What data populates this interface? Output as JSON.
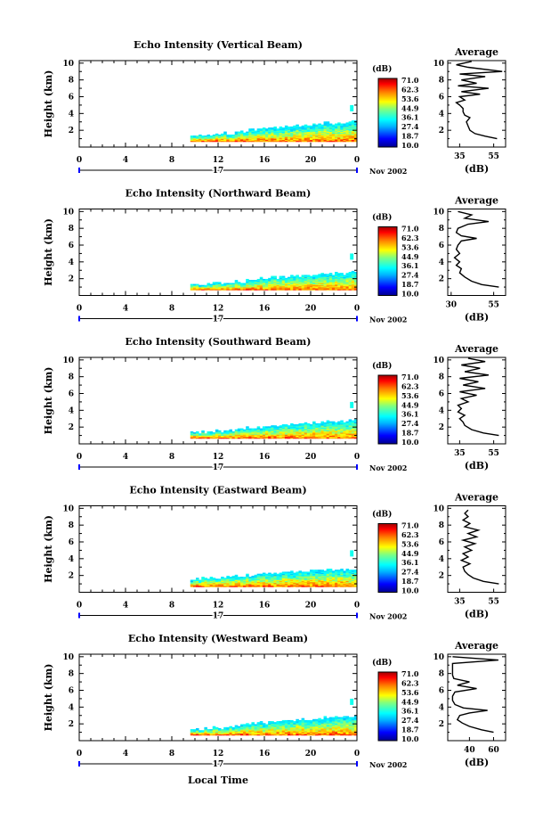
{
  "chart_data": [
    {
      "type": "heatmap",
      "title": "Echo Intensity (Vertical Beam)",
      "ylabel": "Height (km)",
      "xlim": [
        0,
        24
      ],
      "ylim": [
        0,
        10.3
      ],
      "x_ticks": [
        "0",
        "4",
        "8",
        "12",
        "16",
        "20",
        "0"
      ],
      "y_ticks": [
        "2",
        "4",
        "6",
        "8",
        "10"
      ],
      "day_label": "17",
      "date_label": "Nov 2002",
      "colorbar": {
        "unit": "(dB)",
        "labels": [
          "71.0",
          "62.3",
          "53.6",
          "44.9",
          "36.1",
          "27.4",
          "18.7",
          "10.0"
        ]
      },
      "data_start_hour": 9.6,
      "echo_top_km": [
        1.3,
        1.4,
        1.5,
        1.6,
        1.8,
        2.0,
        2.2,
        2.3,
        2.4,
        2.5,
        2.6,
        2.7,
        2.8,
        2.9,
        3.0
      ],
      "average": {
        "title": "Average",
        "xlabel": "(dB)",
        "x_ticks": [
          "35",
          "55"
        ],
        "xlim": [
          28,
          62
        ],
        "y_ticks": [
          "2",
          "4",
          "6",
          "8",
          "10"
        ],
        "ylim": [
          0,
          10.3
        ],
        "profile": [
          [
            1.0,
            57
          ],
          [
            1.3,
            50
          ],
          [
            1.6,
            44
          ],
          [
            2.0,
            41
          ],
          [
            2.5,
            40
          ],
          [
            3.0,
            39
          ],
          [
            3.5,
            41
          ],
          [
            3.8,
            38
          ],
          [
            4.2,
            37
          ],
          [
            4.6,
            37
          ],
          [
            5.0,
            35
          ],
          [
            5.3,
            33
          ],
          [
            5.6,
            38
          ],
          [
            6.0,
            35
          ],
          [
            6.3,
            47
          ],
          [
            6.6,
            36
          ],
          [
            7.0,
            52
          ],
          [
            7.3,
            34
          ],
          [
            7.6,
            45
          ],
          [
            8.0,
            36
          ],
          [
            8.4,
            50
          ],
          [
            8.7,
            35
          ],
          [
            9.0,
            60
          ],
          [
            9.5,
            40
          ],
          [
            9.8,
            33
          ],
          [
            10.2,
            42
          ]
        ]
      }
    },
    {
      "type": "heatmap",
      "title": "Echo Intensity (Northward Beam)",
      "ylabel": "Height (km)",
      "xlim": [
        0,
        24
      ],
      "ylim": [
        0,
        10.3
      ],
      "x_ticks": [
        "0",
        "4",
        "8",
        "12",
        "16",
        "20",
        "0"
      ],
      "y_ticks": [
        "2",
        "4",
        "6",
        "8",
        "10"
      ],
      "day_label": "17",
      "date_label": "Nov 2002",
      "colorbar": {
        "unit": "(dB)",
        "labels": [
          "71.0",
          "62.3",
          "53.6",
          "44.9",
          "36.1",
          "27.4",
          "18.7",
          "10.0"
        ]
      },
      "data_start_hour": 9.6,
      "echo_top_km": [
        1.2,
        1.3,
        1.4,
        1.5,
        1.6,
        1.8,
        2.0,
        2.1,
        2.2,
        2.3,
        2.4,
        2.5,
        2.6,
        2.6,
        2.7
      ],
      "average": {
        "title": "Average",
        "xlabel": "(dB)",
        "x_ticks": [
          "30",
          "55"
        ],
        "xlim": [
          28,
          62
        ],
        "y_ticks": [
          "2",
          "4",
          "6",
          "8",
          "10"
        ],
        "ylim": [
          0,
          10.3
        ],
        "profile": [
          [
            1.0,
            58
          ],
          [
            1.3,
            48
          ],
          [
            1.7,
            42
          ],
          [
            2.2,
            38
          ],
          [
            2.7,
            35
          ],
          [
            3.2,
            36
          ],
          [
            3.6,
            33
          ],
          [
            4.0,
            35
          ],
          [
            4.5,
            32
          ],
          [
            5.0,
            35
          ],
          [
            5.5,
            33
          ],
          [
            6.0,
            34
          ],
          [
            6.5,
            36
          ],
          [
            6.8,
            45
          ],
          [
            7.1,
            36
          ],
          [
            7.5,
            33
          ],
          [
            8.0,
            34
          ],
          [
            8.5,
            40
          ],
          [
            8.8,
            52
          ],
          [
            9.2,
            38
          ],
          [
            9.6,
            42
          ],
          [
            10.0,
            34
          ]
        ]
      }
    },
    {
      "type": "heatmap",
      "title": "Echo Intensity (Southward Beam)",
      "ylabel": "Height (km)",
      "xlim": [
        0,
        24
      ],
      "ylim": [
        0,
        10.3
      ],
      "x_ticks": [
        "0",
        "4",
        "8",
        "12",
        "16",
        "20",
        "0"
      ],
      "y_ticks": [
        "2",
        "4",
        "6",
        "8",
        "10"
      ],
      "day_label": "17",
      "date_label": "Nov 2002",
      "colorbar": {
        "unit": "(dB)",
        "labels": [
          "71.0",
          "62.3",
          "53.6",
          "44.9",
          "36.1",
          "27.4",
          "18.7",
          "10.0"
        ]
      },
      "data_start_hour": 9.6,
      "echo_top_km": [
        1.3,
        1.4,
        1.5,
        1.6,
        1.7,
        1.9,
        2.0,
        2.1,
        2.2,
        2.3,
        2.4,
        2.5,
        2.6,
        2.7,
        2.8
      ],
      "average": {
        "title": "Average",
        "xlabel": "(dB)",
        "x_ticks": [
          "35",
          "55"
        ],
        "xlim": [
          28,
          62
        ],
        "y_ticks": [
          "2",
          "4",
          "6",
          "8",
          "10"
        ],
        "ylim": [
          0,
          10.3
        ],
        "profile": [
          [
            1.0,
            58
          ],
          [
            1.3,
            49
          ],
          [
            1.7,
            42
          ],
          [
            2.2,
            38
          ],
          [
            2.6,
            37
          ],
          [
            3.0,
            35
          ],
          [
            3.4,
            38
          ],
          [
            3.8,
            34
          ],
          [
            4.2,
            36
          ],
          [
            4.6,
            34
          ],
          [
            5.0,
            40
          ],
          [
            5.4,
            36
          ],
          [
            5.8,
            45
          ],
          [
            6.2,
            35
          ],
          [
            6.6,
            50
          ],
          [
            7.0,
            37
          ],
          [
            7.4,
            46
          ],
          [
            7.8,
            35
          ],
          [
            8.2,
            52
          ],
          [
            8.6,
            38
          ],
          [
            9.0,
            47
          ],
          [
            9.4,
            36
          ],
          [
            9.8,
            50
          ],
          [
            10.2,
            40
          ]
        ]
      }
    },
    {
      "type": "heatmap",
      "title": "Echo Intensity (Eastward Beam)",
      "ylabel": "Height (km)",
      "xlim": [
        0,
        24
      ],
      "ylim": [
        0,
        10.3
      ],
      "x_ticks": [
        "0",
        "4",
        "8",
        "12",
        "16",
        "20",
        "0"
      ],
      "y_ticks": [
        "2",
        "4",
        "6",
        "8",
        "10"
      ],
      "day_label": "17",
      "date_label": "Nov 2002",
      "colorbar": {
        "unit": "(dB)",
        "labels": [
          "71.0",
          "62.3",
          "53.6",
          "44.9",
          "36.1",
          "27.4",
          "18.7",
          "10.0"
        ]
      },
      "data_start_hour": 9.6,
      "echo_top_km": [
        1.5,
        1.6,
        1.7,
        1.8,
        1.9,
        2.0,
        2.1,
        2.2,
        2.3,
        2.4,
        2.5,
        2.5,
        2.6,
        2.6,
        2.7
      ],
      "average": {
        "title": "Average",
        "xlabel": "(dB)",
        "x_ticks": [
          "35",
          "55"
        ],
        "xlim": [
          28,
          62
        ],
        "y_ticks": [
          "2",
          "4",
          "6",
          "8",
          "10"
        ],
        "ylim": [
          0,
          10.3
        ],
        "profile": [
          [
            1.0,
            58
          ],
          [
            1.3,
            49
          ],
          [
            1.7,
            43
          ],
          [
            2.1,
            40
          ],
          [
            2.5,
            38
          ],
          [
            3.0,
            37
          ],
          [
            3.4,
            41
          ],
          [
            3.8,
            36
          ],
          [
            4.2,
            40
          ],
          [
            4.6,
            37
          ],
          [
            5.0,
            42
          ],
          [
            5.4,
            38
          ],
          [
            5.8,
            44
          ],
          [
            6.2,
            37
          ],
          [
            6.6,
            45
          ],
          [
            7.0,
            40
          ],
          [
            7.4,
            46
          ],
          [
            7.8,
            38
          ],
          [
            8.2,
            41
          ],
          [
            8.6,
            37
          ],
          [
            9.0,
            40
          ],
          [
            9.4,
            38
          ],
          [
            9.8,
            40
          ]
        ]
      }
    },
    {
      "type": "heatmap",
      "title": "Echo Intensity (Westward Beam)",
      "ylabel": "Height (km)",
      "xlabel": "Local Time",
      "xlim": [
        0,
        24
      ],
      "ylim": [
        0,
        10.3
      ],
      "x_ticks": [
        "0",
        "4",
        "8",
        "12",
        "16",
        "20",
        "0"
      ],
      "y_ticks": [
        "2",
        "4",
        "6",
        "8",
        "10"
      ],
      "day_label": "17",
      "date_label": "Nov 2002",
      "colorbar": {
        "unit": "(dB)",
        "labels": [
          "71.0",
          "62.3",
          "53.6",
          "44.9",
          "36.1",
          "27.4",
          "18.7",
          "10.0"
        ]
      },
      "data_start_hour": 9.6,
      "echo_top_km": [
        1.3,
        1.4,
        1.5,
        1.6,
        1.8,
        2.0,
        2.1,
        2.2,
        2.3,
        2.4,
        2.5,
        2.6,
        2.7,
        2.8,
        2.9
      ],
      "average": {
        "title": "Average",
        "xlabel": "(dB)",
        "x_ticks": [
          "40",
          "60"
        ],
        "xlim": [
          22,
          70
        ],
        "y_ticks": [
          "2",
          "4",
          "6",
          "8",
          "10"
        ],
        "ylim": [
          0,
          10.3
        ],
        "profile": [
          [
            1.0,
            60
          ],
          [
            1.3,
            50
          ],
          [
            1.7,
            40
          ],
          [
            2.1,
            34
          ],
          [
            2.5,
            30
          ],
          [
            3.0,
            32
          ],
          [
            3.3,
            40
          ],
          [
            3.6,
            55
          ],
          [
            3.9,
            35
          ],
          [
            4.3,
            28
          ],
          [
            4.8,
            26
          ],
          [
            5.3,
            26
          ],
          [
            5.8,
            28
          ],
          [
            6.2,
            46
          ],
          [
            6.6,
            30
          ],
          [
            7.0,
            40
          ],
          [
            7.4,
            27
          ],
          [
            7.8,
            26
          ],
          [
            8.5,
            26
          ],
          [
            9.2,
            26
          ],
          [
            9.6,
            64
          ],
          [
            10.0,
            26
          ]
        ]
      }
    }
  ]
}
